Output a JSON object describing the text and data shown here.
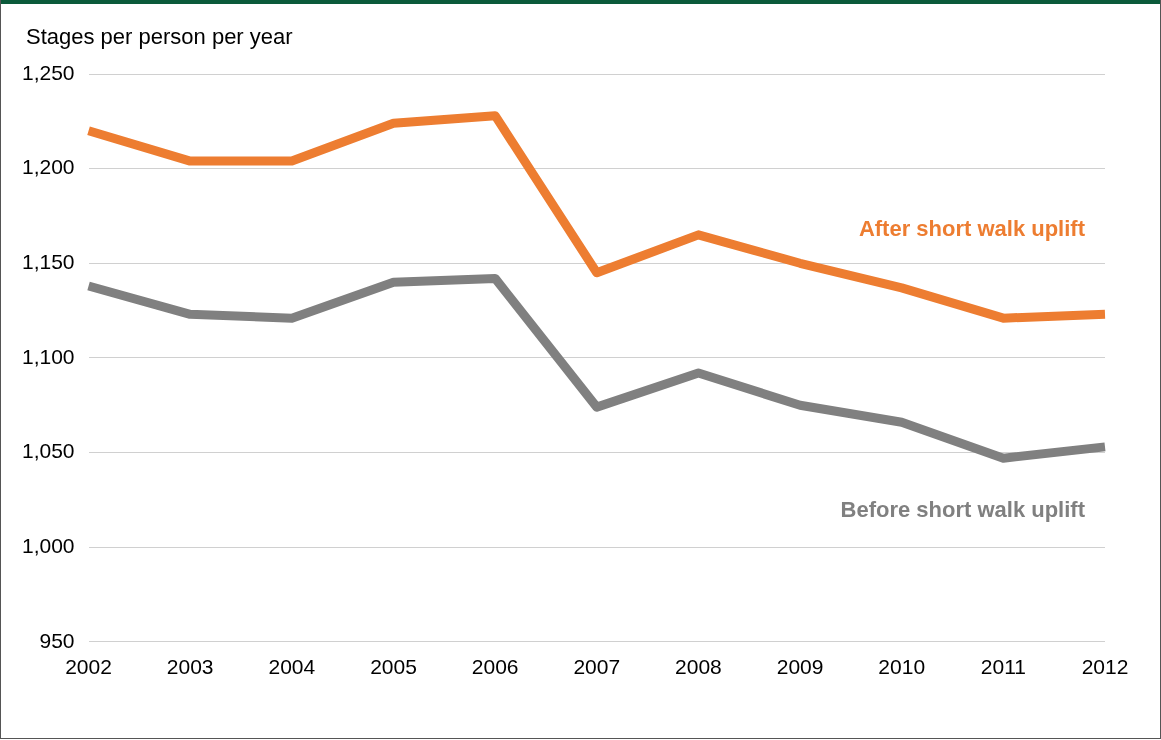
{
  "chart_data": {
    "type": "line",
    "ylabel": "Stages per person per year",
    "categories": [
      "2002",
      "2003",
      "2004",
      "2005",
      "2006",
      "2007",
      "2008",
      "2009",
      "2010",
      "2011",
      "2012"
    ],
    "series": [
      {
        "name": "After short walk uplift",
        "color": "#ed7d31",
        "values": [
          1220,
          1204,
          1204,
          1224,
          1228,
          1145,
          1165,
          1150,
          1137,
          1121,
          1123
        ]
      },
      {
        "name": "Before short walk uplift",
        "color": "#808080",
        "values": [
          1138,
          1123,
          1121,
          1140,
          1142,
          1074,
          1092,
          1075,
          1066,
          1047,
          1053
        ]
      }
    ],
    "ylim": [
      950,
      1250
    ],
    "yticks": [
      {
        "value": 950,
        "label": "950"
      },
      {
        "value": 1000,
        "label": "1,000"
      },
      {
        "value": 1050,
        "label": "1,050"
      },
      {
        "value": 1100,
        "label": "1,100"
      },
      {
        "value": 1150,
        "label": "1,150"
      },
      {
        "value": 1200,
        "label": "1,200"
      },
      {
        "value": 1250,
        "label": "1,250"
      }
    ],
    "grid": "y",
    "legend": false,
    "marker": "none",
    "line_style": "solid"
  }
}
